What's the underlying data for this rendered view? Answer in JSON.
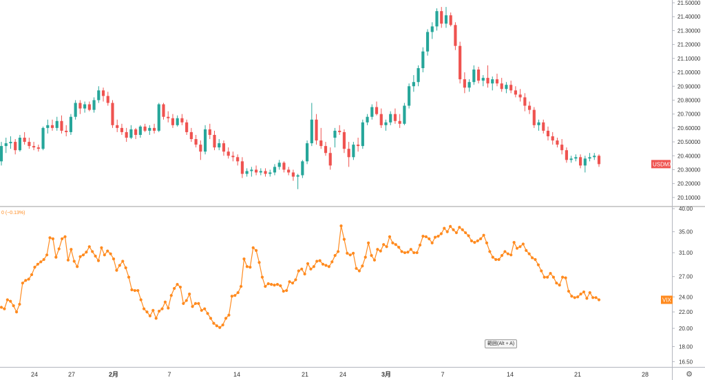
{
  "chart_data": [
    {
      "type": "candlestick",
      "series": [
        {
          "name": "USDMXN"
        }
      ],
      "last_value_tag": "USDMXN",
      "y_ticks": [
        "20.10000",
        "20.20000",
        "20.30000",
        "20.40000",
        "20.50000",
        "20.60000",
        "20.70000",
        "20.80000",
        "20.90000",
        "21.00000",
        "21.10000",
        "21.20000",
        "21.30000",
        "21.40000",
        "21.50000"
      ],
      "ylim": [
        20.04,
        21.52
      ],
      "colors": {
        "up": "#26a69a",
        "down": "#ef5350"
      },
      "candles": [
        [
          20.36,
          20.5,
          20.33,
          20.47
        ],
        [
          20.47,
          20.53,
          20.42,
          20.49
        ],
        [
          20.49,
          20.54,
          20.45,
          20.5
        ],
        [
          20.5,
          20.52,
          20.41,
          20.44
        ],
        [
          20.44,
          20.55,
          20.43,
          20.53
        ],
        [
          20.53,
          20.57,
          20.48,
          20.5
        ],
        [
          20.5,
          20.53,
          20.45,
          20.47
        ],
        [
          20.47,
          20.5,
          20.44,
          20.46
        ],
        [
          20.46,
          20.48,
          20.43,
          20.45
        ],
        [
          20.45,
          20.61,
          20.44,
          20.6
        ],
        [
          20.6,
          20.66,
          20.56,
          20.62
        ],
        [
          20.62,
          20.66,
          20.58,
          20.6
        ],
        [
          20.6,
          20.68,
          20.58,
          20.65
        ],
        [
          20.65,
          20.69,
          20.56,
          20.58
        ],
        [
          20.58,
          20.62,
          20.54,
          20.57
        ],
        [
          20.57,
          20.7,
          20.55,
          20.68
        ],
        [
          20.68,
          20.8,
          20.66,
          20.78
        ],
        [
          20.78,
          20.8,
          20.7,
          20.74
        ],
        [
          20.74,
          20.79,
          20.71,
          20.77
        ],
        [
          20.77,
          20.79,
          20.72,
          20.73
        ],
        [
          20.73,
          20.82,
          20.71,
          20.8
        ],
        [
          20.8,
          20.9,
          20.78,
          20.87
        ],
        [
          20.87,
          20.89,
          20.79,
          20.83
        ],
        [
          20.83,
          20.86,
          20.76,
          20.78
        ],
        [
          20.78,
          20.8,
          20.6,
          20.62
        ],
        [
          20.62,
          20.66,
          20.57,
          20.6
        ],
        [
          20.6,
          20.63,
          20.55,
          20.57
        ],
        [
          20.57,
          20.6,
          20.5,
          20.53
        ],
        [
          20.53,
          20.62,
          20.52,
          20.59
        ],
        [
          20.59,
          20.6,
          20.52,
          20.55
        ],
        [
          20.55,
          20.62,
          20.53,
          20.61
        ],
        [
          20.61,
          20.63,
          20.57,
          20.58
        ],
        [
          20.58,
          20.62,
          20.55,
          20.6
        ],
        [
          20.6,
          20.63,
          20.56,
          20.58
        ],
        [
          20.58,
          20.78,
          20.57,
          20.77
        ],
        [
          20.77,
          20.78,
          20.66,
          20.68
        ],
        [
          20.68,
          20.72,
          20.64,
          20.67
        ],
        [
          20.67,
          20.7,
          20.6,
          20.62
        ],
        [
          20.62,
          20.69,
          20.61,
          20.67
        ],
        [
          20.67,
          20.7,
          20.62,
          20.64
        ],
        [
          20.64,
          20.66,
          20.55,
          20.57
        ],
        [
          20.57,
          20.6,
          20.5,
          20.52
        ],
        [
          20.52,
          20.55,
          20.46,
          20.48
        ],
        [
          20.48,
          20.51,
          20.37,
          20.43
        ],
        [
          20.43,
          20.62,
          20.41,
          20.59
        ],
        [
          20.59,
          20.63,
          20.52,
          20.55
        ],
        [
          20.55,
          20.58,
          20.44,
          20.46
        ],
        [
          20.46,
          20.52,
          20.44,
          20.49
        ],
        [
          20.49,
          20.51,
          20.4,
          20.43
        ],
        [
          20.43,
          20.46,
          20.38,
          20.4
        ],
        [
          20.4,
          20.43,
          20.36,
          20.39
        ],
        [
          20.39,
          20.41,
          20.33,
          20.36
        ],
        [
          20.36,
          20.39,
          20.24,
          20.27
        ],
        [
          20.27,
          20.31,
          20.25,
          20.29
        ],
        [
          20.29,
          20.32,
          20.25,
          20.3
        ],
        [
          20.3,
          20.33,
          20.26,
          20.28
        ],
        [
          20.28,
          20.31,
          20.26,
          20.29
        ],
        [
          20.29,
          20.31,
          20.25,
          20.27
        ],
        [
          20.27,
          20.3,
          20.25,
          20.28
        ],
        [
          20.28,
          20.34,
          20.26,
          20.32
        ],
        [
          20.32,
          20.37,
          20.3,
          20.35
        ],
        [
          20.35,
          20.36,
          20.28,
          20.3
        ],
        [
          20.3,
          20.32,
          20.26,
          20.28
        ],
        [
          20.28,
          20.3,
          20.22,
          20.25
        ],
        [
          20.25,
          20.27,
          20.16,
          20.26
        ],
        [
          20.26,
          20.37,
          20.24,
          20.36
        ],
        [
          20.36,
          20.51,
          20.34,
          20.49
        ],
        [
          20.49,
          20.78,
          20.47,
          20.66
        ],
        [
          20.66,
          20.7,
          20.48,
          20.51
        ],
        [
          20.51,
          20.6,
          20.45,
          20.47
        ],
        [
          20.47,
          20.5,
          20.4,
          20.42
        ],
        [
          20.42,
          20.46,
          20.3,
          20.33
        ],
        [
          20.53,
          20.6,
          20.46,
          20.58
        ],
        [
          20.58,
          20.62,
          20.55,
          20.57
        ],
        [
          20.57,
          20.59,
          20.42,
          20.45
        ],
        [
          20.45,
          20.5,
          20.32,
          20.39
        ],
        [
          20.39,
          20.5,
          20.37,
          20.48
        ],
        [
          20.48,
          20.53,
          20.43,
          20.47
        ],
        [
          20.47,
          20.66,
          20.45,
          20.64
        ],
        [
          20.64,
          20.7,
          20.62,
          20.68
        ],
        [
          20.68,
          20.77,
          20.66,
          20.75
        ],
        [
          20.75,
          20.79,
          20.69,
          20.7
        ],
        [
          20.7,
          20.74,
          20.6,
          20.62
        ],
        [
          20.62,
          20.66,
          20.58,
          20.64
        ],
        [
          20.64,
          20.72,
          20.62,
          20.7
        ],
        [
          20.7,
          20.74,
          20.63,
          20.65
        ],
        [
          20.65,
          20.7,
          20.6,
          20.63
        ],
        [
          20.63,
          20.78,
          20.62,
          20.76
        ],
        [
          20.76,
          20.92,
          20.74,
          20.9
        ],
        [
          20.9,
          20.98,
          20.86,
          20.93
        ],
        [
          20.93,
          21.05,
          20.9,
          21.03
        ],
        [
          21.03,
          21.18,
          21.0,
          21.15
        ],
        [
          21.15,
          21.31,
          21.12,
          21.29
        ],
        [
          21.29,
          21.36,
          21.24,
          21.33
        ],
        [
          21.33,
          21.46,
          21.3,
          21.44
        ],
        [
          21.44,
          21.47,
          21.32,
          21.35
        ],
        [
          21.35,
          21.47,
          21.32,
          21.41
        ],
        [
          21.41,
          21.43,
          21.33,
          21.34
        ],
        [
          21.34,
          21.36,
          21.16,
          21.19
        ],
        [
          21.19,
          21.22,
          20.92,
          20.95
        ],
        [
          20.95,
          21.0,
          20.85,
          20.89
        ],
        [
          20.89,
          20.95,
          20.86,
          20.93
        ],
        [
          20.93,
          21.05,
          20.91,
          21.02
        ],
        [
          21.02,
          21.04,
          20.92,
          20.94
        ],
        [
          20.94,
          20.98,
          20.9,
          20.96
        ],
        [
          20.96,
          21.05,
          20.89,
          20.92
        ],
        [
          20.92,
          20.97,
          20.87,
          20.95
        ],
        [
          20.95,
          20.99,
          20.9,
          20.92
        ],
        [
          20.92,
          20.96,
          20.86,
          20.88
        ],
        [
          20.88,
          20.93,
          20.85,
          20.91
        ],
        [
          20.91,
          20.94,
          20.85,
          20.87
        ],
        [
          20.87,
          20.9,
          20.82,
          20.84
        ],
        [
          20.84,
          20.88,
          20.79,
          20.82
        ],
        [
          20.82,
          20.85,
          20.72,
          20.76
        ],
        [
          20.76,
          20.79,
          20.7,
          20.73
        ],
        [
          20.73,
          20.75,
          20.6,
          20.62
        ],
        [
          20.62,
          20.66,
          20.58,
          20.64
        ],
        [
          20.64,
          20.66,
          20.56,
          20.58
        ],
        [
          20.58,
          20.61,
          20.51,
          20.54
        ],
        [
          20.54,
          20.57,
          20.48,
          20.51
        ],
        [
          20.51,
          20.53,
          20.46,
          20.48
        ],
        [
          20.48,
          20.52,
          20.41,
          20.44
        ],
        [
          20.44,
          20.46,
          20.35,
          20.37
        ],
        [
          20.37,
          20.4,
          20.35,
          20.38
        ],
        [
          20.38,
          20.41,
          20.36,
          20.39
        ],
        [
          20.39,
          20.41,
          20.31,
          20.33
        ],
        [
          20.33,
          20.4,
          20.28,
          20.38
        ],
        [
          20.38,
          20.42,
          20.36,
          20.39
        ],
        [
          20.39,
          20.42,
          20.37,
          20.4
        ],
        [
          20.4,
          20.41,
          20.32,
          20.34
        ]
      ]
    },
    {
      "type": "line",
      "series": [
        {
          "name": "VIX"
        }
      ],
      "legend": "0 (−0.13%)",
      "last_value_tag": "VIX",
      "y_ticks": [
        "16.50",
        "18.00",
        "20.00",
        "22.00",
        "24.00",
        "27.00",
        "31.00",
        "35.00",
        "40.00"
      ],
      "ylim": [
        16.0,
        40.5
      ],
      "color": "#ff8a1e",
      "values": [
        22.6,
        22.4,
        23.6,
        23.4,
        22.8,
        22.0,
        23.0,
        26.0,
        26.4,
        26.6,
        27.3,
        28.5,
        29.0,
        29.4,
        29.8,
        30.6,
        33.8,
        33.6,
        30.2,
        31.7,
        33.6,
        34.0,
        29.7,
        31.6,
        29.5,
        28.6,
        30.3,
        30.6,
        31.1,
        32.1,
        31.2,
        30.4,
        29.6,
        31.9,
        30.6,
        31.3,
        30.8,
        29.9,
        28.0,
        28.8,
        29.5,
        28.4,
        26.9,
        25.0,
        24.9,
        24.9,
        23.6,
        22.4,
        22.0,
        21.5,
        22.2,
        21.2,
        22.1,
        22.4,
        23.3,
        22.5,
        24.2,
        25.2,
        25.8,
        25.4,
        23.1,
        23.5,
        24.4,
        22.7,
        23.1,
        23.1,
        22.2,
        22.4,
        21.8,
        21.2,
        20.6,
        20.3,
        20.1,
        20.4,
        21.2,
        21.6,
        24.1,
        24.2,
        24.6,
        25.5,
        29.9,
        28.6,
        28.5,
        31.9,
        31.4,
        29.3,
        26.9,
        25.5,
        25.9,
        25.8,
        25.7,
        25.8,
        25.6,
        24.8,
        24.9,
        26.2,
        26.0,
        26.5,
        27.9,
        28.2,
        27.4,
        29.1,
        28.2,
        28.6,
        29.5,
        29.6,
        29.0,
        28.8,
        28.6,
        29.4,
        30.5,
        31.2,
        36.2,
        33.5,
        30.9,
        30.6,
        30.9,
        28.3,
        27.9,
        28.7,
        30.2,
        32.8,
        30.5,
        29.7,
        31.6,
        31.3,
        32.5,
        32.1,
        34.0,
        32.8,
        32.5,
        32.0,
        31.2,
        31.0,
        31.1,
        31.6,
        31.0,
        31.0,
        32.4,
        34.1,
        34.0,
        33.6,
        32.8,
        33.9,
        34.1,
        34.6,
        35.7,
        35.0,
        36.1,
        35.4,
        34.8,
        35.9,
        35.4,
        34.8,
        34.2,
        33.2,
        32.9,
        33.2,
        33.6,
        34.3,
        32.8,
        31.2,
        30.2,
        29.8,
        29.8,
        30.5,
        31.2,
        30.8,
        30.6,
        32.9,
        31.8,
        32.1,
        32.6,
        31.4,
        30.8,
        30.1,
        29.8,
        28.9,
        27.9,
        26.9,
        26.9,
        27.5,
        26.9,
        26.0,
        25.7,
        26.9,
        26.8,
        24.8,
        24.1,
        23.9,
        24.0,
        24.4,
        24.7,
        23.8,
        24.6,
        23.9,
        23.9,
        23.6
      ]
    }
  ],
  "x_axis": {
    "labels": [
      "24",
      "27",
      "2月",
      "7",
      "14",
      "21",
      "24",
      "3月",
      "7",
      "14",
      "21",
      "28"
    ]
  },
  "tooltip": "範囲(Alt + A)",
  "settings_icon": "gear-icon"
}
